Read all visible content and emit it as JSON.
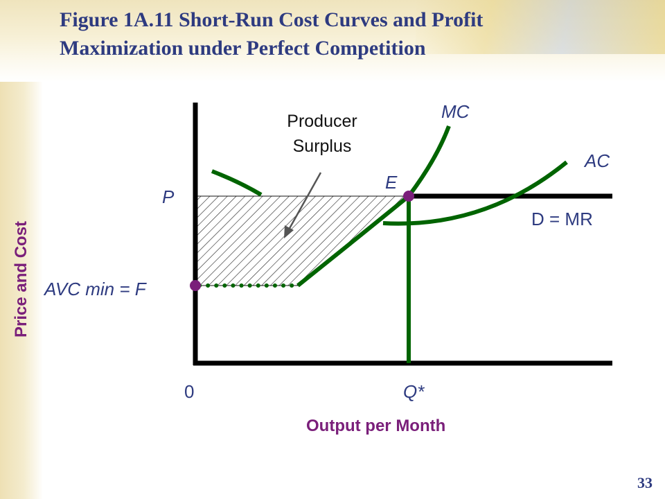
{
  "title": {
    "line1": "Figure 1A.11 Short-Run Cost Curves and Profit",
    "line2": "Maximization under Perfect Competition"
  },
  "slide_number": "33",
  "axes": {
    "y_title": "Price and Cost",
    "x_title": "Output per Month",
    "origin_label": "0",
    "x_tick_label": "Q*",
    "y_tick_p_label": "P",
    "y_tick_f_label": "AVC min = F"
  },
  "curves": {
    "mc_label": "MC",
    "ac_label": "AC",
    "demand_label": "D = MR",
    "equilibrium_label": "E"
  },
  "annotation": {
    "line1": "Producer",
    "line2": "Surplus"
  },
  "colors": {
    "curve": "#006400",
    "axis": "#000000",
    "point": "#7a1f7a",
    "title": "#2e3b80",
    "axis_title": "#7a1f7a"
  }
}
